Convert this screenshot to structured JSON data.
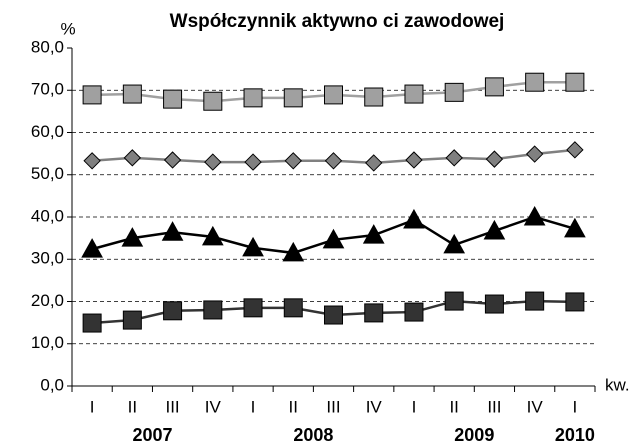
{
  "chart_data": {
    "type": "line",
    "title": "Współczynnik aktywno ci zawodowej",
    "y_label": "%",
    "x_label": "kw.",
    "categories": [
      "I",
      "II",
      "III",
      "IV",
      "I",
      "II",
      "III",
      "IV",
      "I",
      "II",
      "III",
      "IV",
      "I"
    ],
    "year_groups": [
      {
        "label": "2007",
        "count": 4
      },
      {
        "label": "2008",
        "count": 4
      },
      {
        "label": "2009",
        "count": 4
      },
      {
        "label": "2010",
        "count": 1
      }
    ],
    "ylim": [
      0,
      80
    ],
    "yticks": [
      {
        "value": 0,
        "label": "0,0"
      },
      {
        "value": 10,
        "label": "10,0"
      },
      {
        "value": 20,
        "label": "20,0"
      },
      {
        "value": 30,
        "label": "30,0"
      },
      {
        "value": 40,
        "label": "40,0"
      },
      {
        "value": 50,
        "label": "50,0"
      },
      {
        "value": 60,
        "label": "60,0"
      },
      {
        "value": 70,
        "label": "70,0"
      },
      {
        "value": 80,
        "label": "80,0"
      }
    ],
    "grid": true,
    "series": [
      {
        "color": "#a0a0a0",
        "marker": "square",
        "values": [
          68.9,
          69.1,
          67.9,
          67.4,
          68.2,
          68.2,
          68.9,
          68.4,
          69.1,
          69.5,
          70.8,
          71.9,
          71.9
        ]
      },
      {
        "color": "#808080",
        "marker": "diamond",
        "values": [
          53.3,
          54.0,
          53.5,
          53.0,
          53.0,
          53.3,
          53.3,
          52.8,
          53.5,
          54.0,
          53.7,
          54.9,
          55.9
        ]
      },
      {
        "color": "#000000",
        "marker": "triangle",
        "values": [
          32.4,
          35.0,
          36.4,
          35.3,
          32.7,
          31.5,
          34.6,
          35.7,
          39.3,
          33.4,
          36.7,
          40.0,
          37.2
        ]
      },
      {
        "color": "#333333",
        "marker": "square",
        "values": [
          14.9,
          15.6,
          17.8,
          18.0,
          18.5,
          18.5,
          16.8,
          17.3,
          17.5,
          20.1,
          19.4,
          20.1,
          19.9
        ]
      }
    ]
  }
}
